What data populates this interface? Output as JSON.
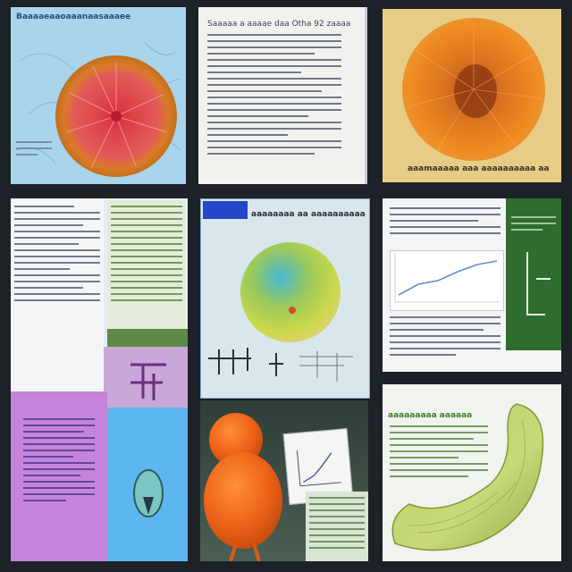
{
  "screen": {
    "background": "#1d2128",
    "panels": [
      {
        "id": "panel-1",
        "name": "red-sphere-page",
        "color": "#a8d4ec"
      },
      {
        "id": "panel-2",
        "name": "text-page",
        "color": "#f1f2ee"
      },
      {
        "id": "panel-3",
        "name": "orange-specimen-page",
        "color": "#e7cc86"
      },
      {
        "id": "panel-4",
        "name": "collage-page",
        "color": "#e9ecef"
      },
      {
        "id": "panel-5",
        "name": "green-sphere-page",
        "color": "#d8e7ec"
      },
      {
        "id": "panel-6",
        "name": "chart-page",
        "color": "#f3f4f6"
      },
      {
        "id": "panel-7",
        "name": "orange-figure-page",
        "color": "#344b41"
      },
      {
        "id": "panel-8",
        "name": "green-organ-page",
        "color": "#f1f3ee"
      }
    ],
    "blurred_text": {
      "p1_title": "Baaaaeaaoaaanaasaaaee",
      "p2_line1": "Saaaaa a aaaae daa Otha 92 zaaaa",
      "p3_caption": "aaamaaaaa aaa aaaaaaaaaa aa",
      "p5_title": "aaaaaaaa aa aaaaaaaaaaa",
      "p8_title": "aaaaaaaaa aaaaaa"
    }
  }
}
